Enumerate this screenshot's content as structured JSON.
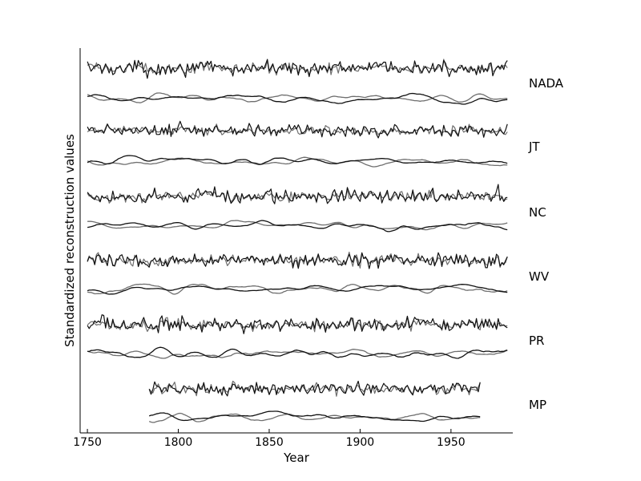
{
  "chart_data": {
    "type": "line",
    "title": "",
    "xlabel": "Year",
    "ylabel": "Standardized reconstruction values",
    "xlim": [
      1746,
      1984
    ],
    "x_ticks": [
      1750,
      1800,
      1850,
      1900,
      1950
    ],
    "x_tick_labels": [
      "1750",
      "1800",
      "1850",
      "1900",
      "1950"
    ],
    "y_ticks_visible": false,
    "grid": false,
    "legend": "none",
    "series_colors": {
      "black": "#111111",
      "gray": "#6e6e6e"
    },
    "panels": [
      {
        "label": "NADA",
        "start": 1750,
        "end": 1981
      },
      {
        "label": "JT",
        "start": 1750,
        "end": 1981
      },
      {
        "label": "NC",
        "start": 1750,
        "end": 1981
      },
      {
        "label": "WV",
        "start": 1750,
        "end": 1981
      },
      {
        "label": "PR",
        "start": 1750,
        "end": 1981
      },
      {
        "label": "MP",
        "start": 1784,
        "end": 1966
      }
    ],
    "note_values": "Each panel shows an annual (high-frequency) pair and a smoothed (low-frequency) pair of standardized reconstruction series; exact annual values are not labeled in the figure."
  }
}
